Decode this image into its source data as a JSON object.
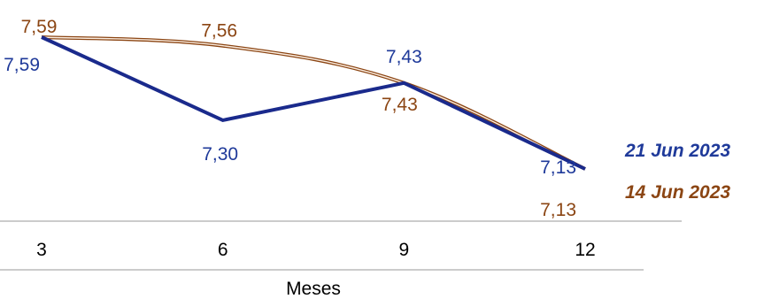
{
  "chart_data": {
    "type": "line",
    "x": [
      3,
      6,
      9,
      12
    ],
    "x_tick_labels": [
      "3",
      "6",
      "9",
      "12"
    ],
    "xlabel": "Meses",
    "ylabel": "",
    "ylim": [
      6.9,
      7.65
    ],
    "grid": false,
    "legend_placement": "right, at line ends",
    "series": [
      {
        "name": "21 Jun 2023",
        "color": "#1a2a8c",
        "label_color": "#1f3a9a",
        "values": [
          7.59,
          7.3,
          7.43,
          7.13
        ],
        "value_labels": [
          "7,59",
          "7,30",
          "7,43",
          "7,13"
        ]
      },
      {
        "name": "14 Jun 2023",
        "color": "#8b4513",
        "label_color": "#8b4513",
        "values": [
          7.59,
          7.56,
          7.43,
          7.13
        ],
        "value_labels": [
          "7,59",
          "7,56",
          "7,43",
          "7,13"
        ]
      }
    ]
  }
}
